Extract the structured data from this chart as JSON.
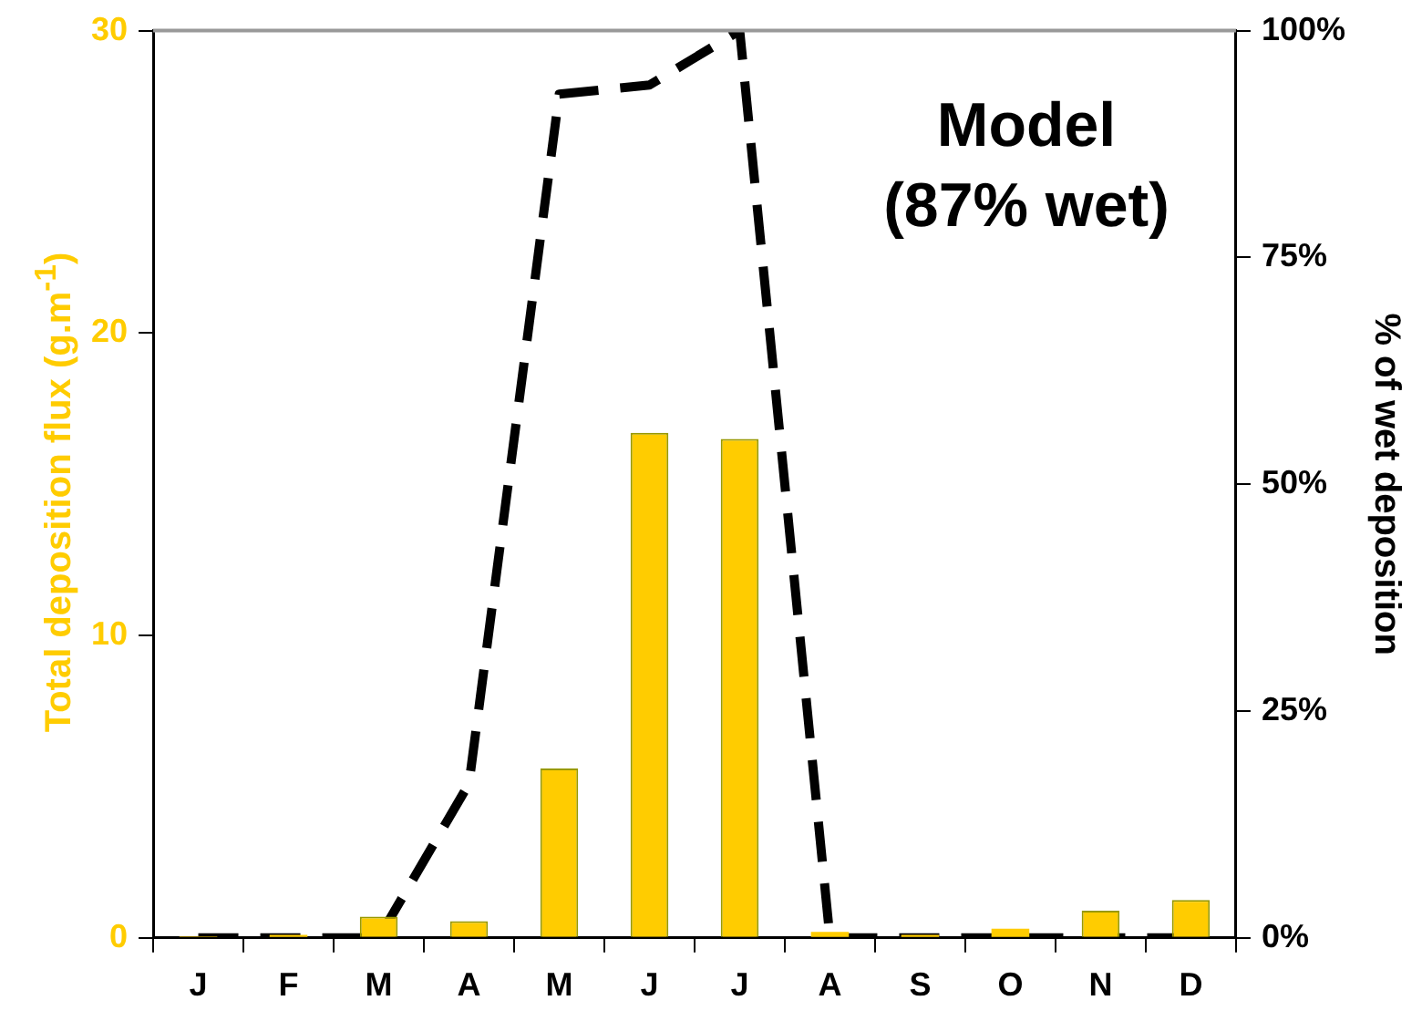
{
  "chart_data": {
    "type": "bar",
    "ylabel": "Total deposition flux (g.m$^{-1}$)",
    "y2label": "% of wet deposition",
    "categories": [
      "J",
      "F",
      "M",
      "A",
      "M",
      "J",
      "J",
      "A",
      "S",
      "O",
      "N",
      "D"
    ],
    "series": [
      {
        "color": "#ffcc00",
        "values": [
          0.05,
          0.1,
          0.7,
          0.55,
          5.6,
          16.7,
          16.5,
          0.2,
          0.1,
          0.3,
          0.9,
          1.25
        ]
      },
      {
        "type": "line",
        "axis": "y2",
        "color": "#000000",
        "line_style": "dashed",
        "values": [
          0,
          0,
          0,
          17,
          93,
          94,
          100,
          0,
          0,
          0,
          0,
          0
        ]
      }
    ],
    "ylim": [
      0,
      30
    ],
    "yticks": [
      0,
      10,
      20,
      30
    ],
    "y2lim": [
      0,
      100
    ],
    "y2ticks": [
      {
        "value": 0,
        "label": "0%"
      },
      {
        "value": 25,
        "label": "25%"
      },
      {
        "value": 50,
        "label": "50%"
      },
      {
        "value": 75,
        "label": "75%"
      },
      {
        "value": 100,
        "label": "100%"
      }
    ],
    "annotations": [
      "Model",
      "(87% wet)"
    ],
    "grid": false,
    "legend": false,
    "marker": "none"
  }
}
